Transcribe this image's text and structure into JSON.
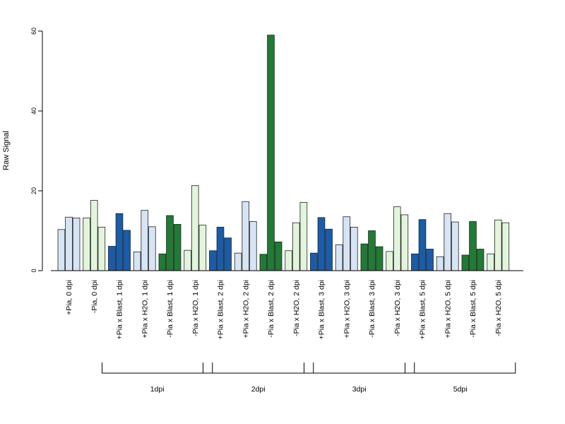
{
  "chart_data": {
    "type": "bar",
    "ylabel": "Raw Signal",
    "ylim": [
      0,
      60
    ],
    "yticks": [
      0,
      20,
      40,
      60
    ],
    "categories": [
      "+Pia, 0 dpi",
      "-Pia, 0 dpi",
      "+Pia x Blast, 1 dpi",
      "+Pia x H2O, 1 dpi",
      "-Pia x Blast, 1 dpi",
      "-Pia x H2O, 1 dpi",
      "+Pia x Blast, 2 dpi",
      "+Pia x H2O, 2 dpi",
      "-Pia x Blast, 2 dpi",
      "-Pia x H2O, 2 dpi",
      "+Pia x Blast, 3 dpi",
      "+Pia x H2O, 3 dpi",
      "-Pia x Blast, 3 dpi",
      "-Pia x H2O, 3 dpi",
      "+Pia x Blast, 5 dpi",
      "+Pia x H2O, 5 dpi",
      "-Pia x Blast, 5 dpi",
      "-Pia x H2O, 5 dpi"
    ],
    "colors": [
      "#d6e4f4",
      "#e2f5dc",
      "#1a5ca8",
      "#d6e4f4",
      "#217a35",
      "#e2f5dc",
      "#1a5ca8",
      "#d6e4f4",
      "#217a35",
      "#e2f5dc",
      "#1a5ca8",
      "#d6e4f4",
      "#217a35",
      "#e2f5dc",
      "#1a5ca8",
      "#d6e4f4",
      "#217a35",
      "#e2f5dc"
    ],
    "values": [
      [
        10.3,
        13.4,
        13.2
      ],
      [
        13.2,
        17.6,
        10.9
      ],
      [
        6.1,
        14.3,
        10.1
      ],
      [
        4.7,
        15.1,
        11.0
      ],
      [
        4.2,
        13.8,
        11.6
      ],
      [
        5.1,
        21.3,
        11.4
      ],
      [
        5.0,
        10.9,
        8.2
      ],
      [
        4.4,
        17.3,
        12.3
      ],
      [
        4.1,
        59.0,
        7.2
      ],
      [
        5.0,
        12.0,
        17.1
      ],
      [
        4.4,
        13.3,
        10.4
      ],
      [
        6.5,
        13.5,
        10.9
      ],
      [
        6.7,
        10.0,
        6.0
      ],
      [
        4.8,
        16.0,
        14.0
      ],
      [
        4.2,
        12.8,
        5.4
      ],
      [
        3.5,
        14.3,
        12.2
      ],
      [
        3.9,
        12.3,
        5.4
      ],
      [
        4.2,
        12.7,
        12.0
      ]
    ],
    "groups": [
      {
        "label": "1dpi",
        "start": 2,
        "end": 5
      },
      {
        "label": "2dpi",
        "start": 6,
        "end": 9
      },
      {
        "label": "3dpi",
        "start": 10,
        "end": 13
      },
      {
        "label": "5dpi",
        "start": 14,
        "end": 17
      }
    ],
    "grid": false,
    "legend": "none"
  }
}
